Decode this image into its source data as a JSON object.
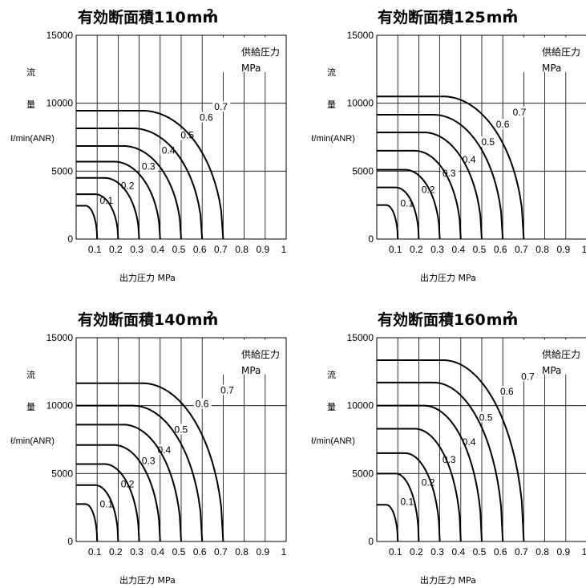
{
  "chart_data": [
    {
      "type": "line",
      "title": "有効断面積110",
      "title_unit": "mm",
      "title_sup": "2",
      "xlabel": "出力圧力 MPa",
      "ylabel_chars": [
        "流",
        "量"
      ],
      "ylabel_unit": "ℓ/min(ANR)",
      "legend_title": "供給圧力",
      "legend_unit": "MPa",
      "xlim": [
        0,
        1
      ],
      "ylim": [
        0,
        15000
      ],
      "x_ticks": [
        "0.1",
        "0.2",
        "0.3",
        "0.4",
        "0.5",
        "0.6",
        "0.7",
        "0.8",
        "0.9",
        "1"
      ],
      "y_ticks": [
        "15000",
        "10000",
        "5000",
        "0"
      ],
      "grid": true,
      "series": [
        {
          "name": "0.1",
          "supply": 0.1,
          "max_flow": 2450
        },
        {
          "name": "0.2",
          "supply": 0.2,
          "max_flow": 3300
        },
        {
          "name": "0.3",
          "supply": 0.3,
          "max_flow": 4500
        },
        {
          "name": "0.4",
          "supply": 0.4,
          "max_flow": 5700
        },
        {
          "name": "0.5",
          "supply": 0.5,
          "max_flow": 6850
        },
        {
          "name": "0.6",
          "supply": 0.6,
          "max_flow": 8150
        },
        {
          "name": "0.7",
          "supply": 0.7,
          "max_flow": 9450
        }
      ]
    },
    {
      "type": "line",
      "title": "有効断面積125",
      "title_unit": "mm",
      "title_sup": "2",
      "xlabel": "出力圧力 MPa",
      "ylabel_chars": [
        "流",
        "量"
      ],
      "ylabel_unit": "ℓ/min(ANR)",
      "legend_title": "供給圧力",
      "legend_unit": "MPa",
      "xlim": [
        0,
        1
      ],
      "ylim": [
        0,
        15000
      ],
      "x_ticks": [
        "0.1",
        "0.2",
        "0.3",
        "0.4",
        "0.5",
        "0.6",
        "0.7",
        "0.8",
        "0.9",
        "1"
      ],
      "y_ticks": [
        "15000",
        "10000",
        "5000",
        "0"
      ],
      "grid": true,
      "series": [
        {
          "name": "0.1",
          "supply": 0.1,
          "max_flow": 2500
        },
        {
          "name": "0.2",
          "supply": 0.2,
          "max_flow": 3800
        },
        {
          "name": "0.3",
          "supply": 0.3,
          "max_flow": 5100
        },
        {
          "name": "0.4",
          "supply": 0.4,
          "max_flow": 6500
        },
        {
          "name": "0.5",
          "supply": 0.5,
          "max_flow": 7850
        },
        {
          "name": "0.6",
          "supply": 0.6,
          "max_flow": 9150
        },
        {
          "name": "0.7",
          "supply": 0.7,
          "max_flow": 10500
        }
      ]
    },
    {
      "type": "line",
      "title": "有効断面積140",
      "title_unit": "mm",
      "title_sup": "2",
      "xlabel": "出力圧力 MPa",
      "ylabel_chars": [
        "流",
        "量"
      ],
      "ylabel_unit": "ℓ/min(ANR)",
      "legend_title": "供給圧力",
      "legend_unit": "MPa",
      "xlim": [
        0,
        1
      ],
      "ylim": [
        0,
        15000
      ],
      "x_ticks": [
        "0.1",
        "0.2",
        "0.3",
        "0.4",
        "0.5",
        "0.6",
        "0.7",
        "0.8",
        "0.9",
        "1"
      ],
      "y_ticks": [
        "15000",
        "10000",
        "5000",
        "0"
      ],
      "grid": true,
      "series": [
        {
          "name": "0.1",
          "supply": 0.1,
          "max_flow": 2750
        },
        {
          "name": "0.2",
          "supply": 0.2,
          "max_flow": 4150
        },
        {
          "name": "0.3",
          "supply": 0.3,
          "max_flow": 5700
        },
        {
          "name": "0.4",
          "supply": 0.4,
          "max_flow": 7100
        },
        {
          "name": "0.5",
          "supply": 0.5,
          "max_flow": 8600
        },
        {
          "name": "0.6",
          "supply": 0.6,
          "max_flow": 10000
        },
        {
          "name": "0.7",
          "supply": 0.7,
          "max_flow": 11650
        }
      ]
    },
    {
      "type": "line",
      "title": "有効断面積160",
      "title_unit": "mm",
      "title_sup": "2",
      "xlabel": "出力圧力 MPa",
      "ylabel_chars": [
        "流",
        "量"
      ],
      "ylabel_unit": "ℓ/min(ANR)",
      "legend_title": "供給圧力",
      "legend_unit": "MPa",
      "xlim": [
        0,
        1
      ],
      "ylim": [
        0,
        15000
      ],
      "x_ticks": [
        "0.1",
        "0.2",
        "0.3",
        "0.4",
        "0.5",
        "0.6",
        "0.7",
        "0.8",
        "0.9",
        "1"
      ],
      "y_ticks": [
        "15000",
        "10000",
        "5000",
        "0"
      ],
      "grid": true,
      "series": [
        {
          "name": "0.1",
          "supply": 0.1,
          "max_flow": 2700
        },
        {
          "name": "0.2",
          "supply": 0.2,
          "max_flow": 5000
        },
        {
          "name": "0.3",
          "supply": 0.3,
          "max_flow": 6500
        },
        {
          "name": "0.4",
          "supply": 0.4,
          "max_flow": 8300
        },
        {
          "name": "0.5",
          "supply": 0.5,
          "max_flow": 10000
        },
        {
          "name": "0.6",
          "supply": 0.6,
          "max_flow": 11700
        },
        {
          "name": "0.7",
          "supply": 0.7,
          "max_flow": 13350
        }
      ]
    }
  ]
}
